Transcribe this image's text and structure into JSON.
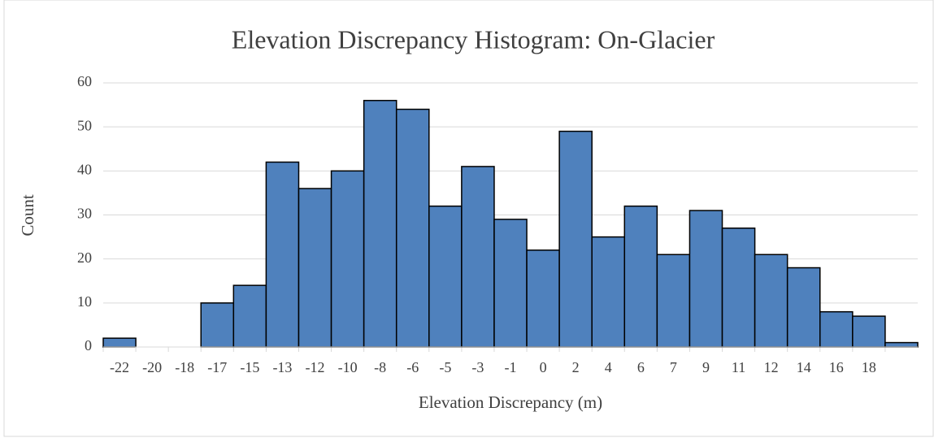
{
  "chart_data": {
    "type": "bar",
    "title": "Elevation Discrepancy Histogram: On-Glacier",
    "xlabel": "Elevation Discrepancy (m)",
    "ylabel": "Count",
    "categories": [
      "-22",
      "-20",
      "-18",
      "-17",
      "-15",
      "-13",
      "-12",
      "-10",
      "-8",
      "-6",
      "-5",
      "-3",
      "-1",
      "0",
      "2",
      "4",
      "6",
      "7",
      "9",
      "11",
      "12",
      "14",
      "16",
      "18",
      null
    ],
    "values": [
      2,
      0,
      0,
      10,
      14,
      42,
      36,
      40,
      56,
      54,
      32,
      41,
      29,
      22,
      49,
      25,
      32,
      21,
      31,
      27,
      21,
      18,
      8,
      7,
      1
    ],
    "color": "#4f81bd",
    "ylim": [
      0,
      60
    ],
    "yticks": [
      0,
      10,
      20,
      30,
      40,
      50,
      60
    ],
    "grid": true
  }
}
